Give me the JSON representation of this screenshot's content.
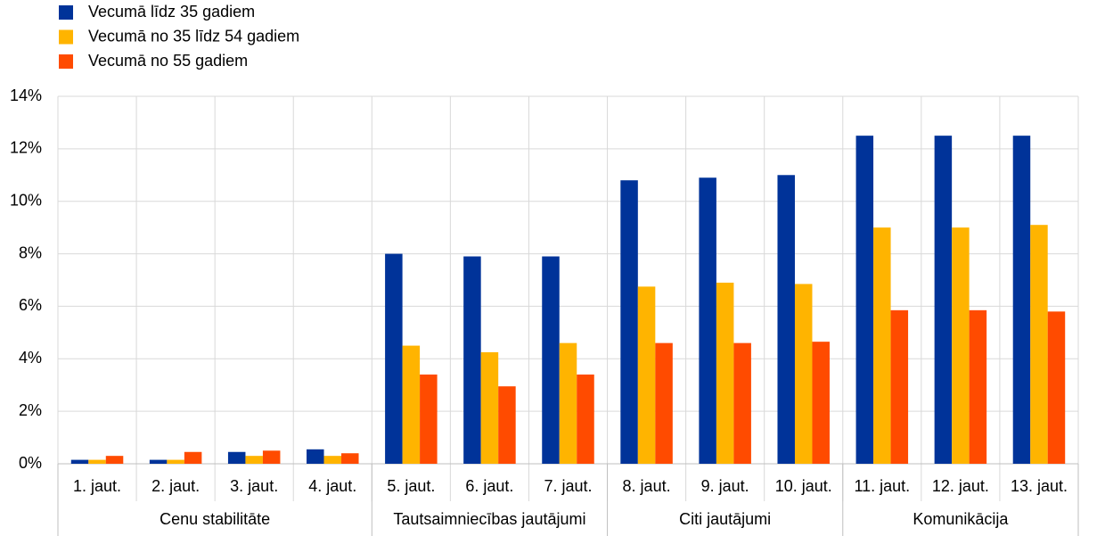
{
  "chart_data": {
    "type": "bar",
    "categories": [
      "1. jaut.",
      "2. jaut.",
      "3. jaut.",
      "4. jaut.",
      "5. jaut.",
      "6. jaut.",
      "7. jaut.",
      "8. jaut.",
      "9. jaut.",
      "10. jaut.",
      "11. jaut.",
      "12. jaut.",
      "13. jaut."
    ],
    "groups": [
      "Cenu stabilitāte",
      null,
      null,
      null,
      "Tautsaimniecības jautājumi",
      null,
      null,
      "Citi jautājumi",
      null,
      null,
      "Komunikācija",
      null,
      null
    ],
    "series": [
      {
        "name": "Vecumā līdz 35 gadiem",
        "color": "#003399",
        "values": [
          0.15,
          0.15,
          0.45,
          0.55,
          8.0,
          7.9,
          7.9,
          10.8,
          10.9,
          11.0,
          12.5,
          12.5,
          12.5
        ]
      },
      {
        "name": "Vecumā no 35 līdz 54 gadiem",
        "color": "#ffb400",
        "values": [
          0.15,
          0.15,
          0.3,
          0.3,
          4.5,
          4.25,
          4.6,
          6.75,
          6.9,
          6.85,
          9.0,
          9.0,
          9.1
        ]
      },
      {
        "name": "Vecumā no 55 gadiem",
        "color": "#ff4b00",
        "values": [
          0.3,
          0.45,
          0.5,
          0.4,
          3.4,
          2.95,
          3.4,
          4.6,
          4.6,
          4.65,
          5.85,
          5.85,
          5.8
        ]
      }
    ],
    "ylim": [
      0,
      14
    ],
    "yticks": [
      {
        "value": 0,
        "label": "0%"
      },
      {
        "value": 2,
        "label": "2%"
      },
      {
        "value": 4,
        "label": "4%"
      },
      {
        "value": 6,
        "label": "6%"
      },
      {
        "value": 8,
        "label": "8%"
      },
      {
        "value": 10,
        "label": "10%"
      },
      {
        "value": 12,
        "label": "12%"
      },
      {
        "value": 14,
        "label": "14%"
      }
    ],
    "grid": true,
    "legend": "top-left"
  }
}
